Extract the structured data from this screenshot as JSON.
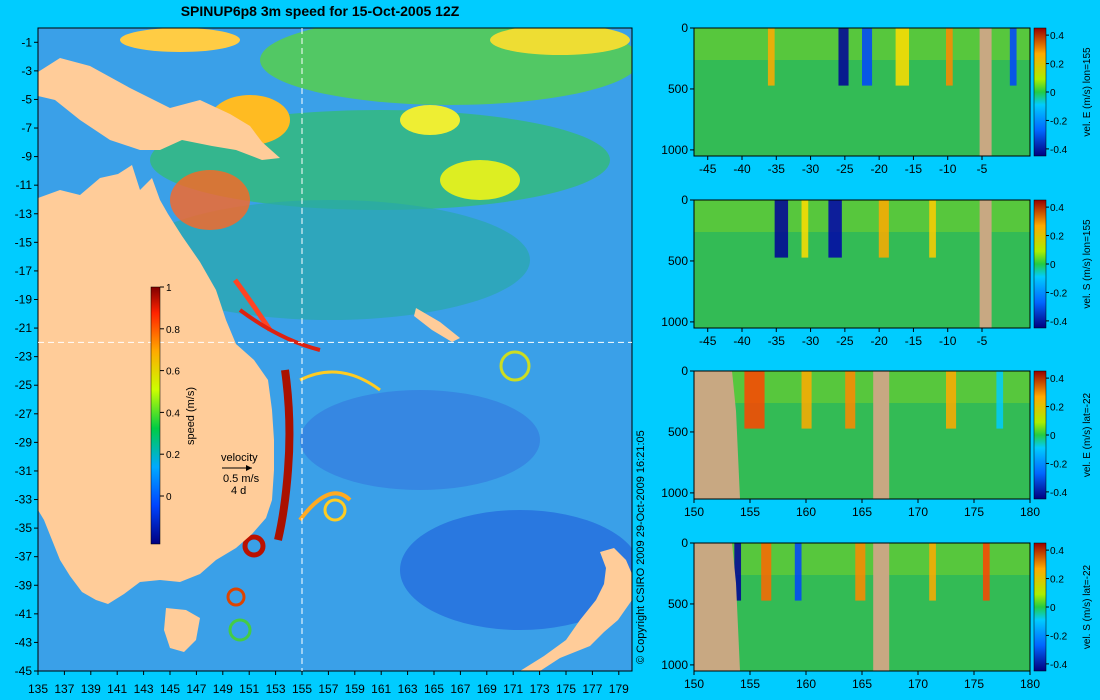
{
  "title": "SPINUP6p8 3m speed for 15-Oct-2005 12Z",
  "copyright": "© Copyright CSIRO 2009   29-Oct-2009 16:21:05",
  "map": {
    "lon_ticks": [
      "135",
      "137",
      "139",
      "141",
      "143",
      "145",
      "147",
      "149",
      "151",
      "153",
      "155",
      "157",
      "159",
      "161",
      "163",
      "165",
      "167",
      "169",
      "171",
      "173",
      "175",
      "177",
      "179"
    ],
    "lat_ticks": [
      "-1",
      "-3",
      "-5",
      "-7",
      "-9",
      "-11",
      "-13",
      "-15",
      "-17",
      "-19",
      "-21",
      "-23",
      "-25",
      "-27",
      "-29",
      "-31",
      "-33",
      "-35",
      "-37",
      "-39",
      "-41",
      "-43",
      "-45"
    ],
    "lon_range": [
      135,
      180
    ],
    "lat_range": [
      -45,
      0
    ],
    "section_lon": 155,
    "section_lat": -22,
    "colorbar": {
      "label": "speed (m/s)",
      "ticks": [
        "1",
        "0.8",
        "0.6",
        "0.4",
        "0.2",
        "0"
      ]
    },
    "velocity_key": {
      "label": "velocity",
      "speed": "0.5 m/s",
      "duration": "4 d"
    },
    "colors": {
      "land": "#ffcc99",
      "ocean": "#3aa0e8"
    }
  },
  "panels": [
    {
      "id": "p1",
      "xticks": [
        "-45",
        "-40",
        "-35",
        "-30",
        "-25",
        "-20",
        "-15",
        "-10",
        "-5"
      ],
      "xrange": [
        -47,
        2
      ],
      "yticks": [
        "0",
        "500",
        "1000"
      ],
      "cbar_ticks": [
        "0.4",
        "0.2",
        "0",
        "-0.2",
        "-0.4"
      ],
      "cbar_label": "vel. E (m/s) lon=155"
    },
    {
      "id": "p2",
      "xticks": [
        "-45",
        "-40",
        "-35",
        "-30",
        "-25",
        "-20",
        "-15",
        "-10",
        "-5"
      ],
      "xrange": [
        -47,
        2
      ],
      "yticks": [
        "0",
        "500",
        "1000"
      ],
      "cbar_ticks": [
        "0.4",
        "0.2",
        "0",
        "-0.2",
        "-0.4"
      ],
      "cbar_label": "vel. S (m/s) lon=155"
    },
    {
      "id": "p3",
      "xticks": [
        "150",
        "155",
        "160",
        "165",
        "170",
        "175",
        "180"
      ],
      "xrange": [
        150,
        180
      ],
      "yticks": [
        "0",
        "500",
        "1000"
      ],
      "cbar_ticks": [
        "0.4",
        "0.2",
        "0",
        "-0.2",
        "-0.4"
      ],
      "cbar_label": "vel. E (m/s) lat=-22"
    },
    {
      "id": "p4",
      "xticks": [
        "150",
        "155",
        "160",
        "165",
        "170",
        "175",
        "180"
      ],
      "xrange": [
        150,
        180
      ],
      "yticks": [
        "0",
        "500",
        "1000"
      ],
      "cbar_ticks": [
        "0.4",
        "0.2",
        "0",
        "-0.2",
        "-0.4"
      ],
      "cbar_label": "vel. S (m/s) lat=-22"
    }
  ],
  "colors": {
    "background": "#00ccff",
    "seabed": "#c8a882"
  }
}
